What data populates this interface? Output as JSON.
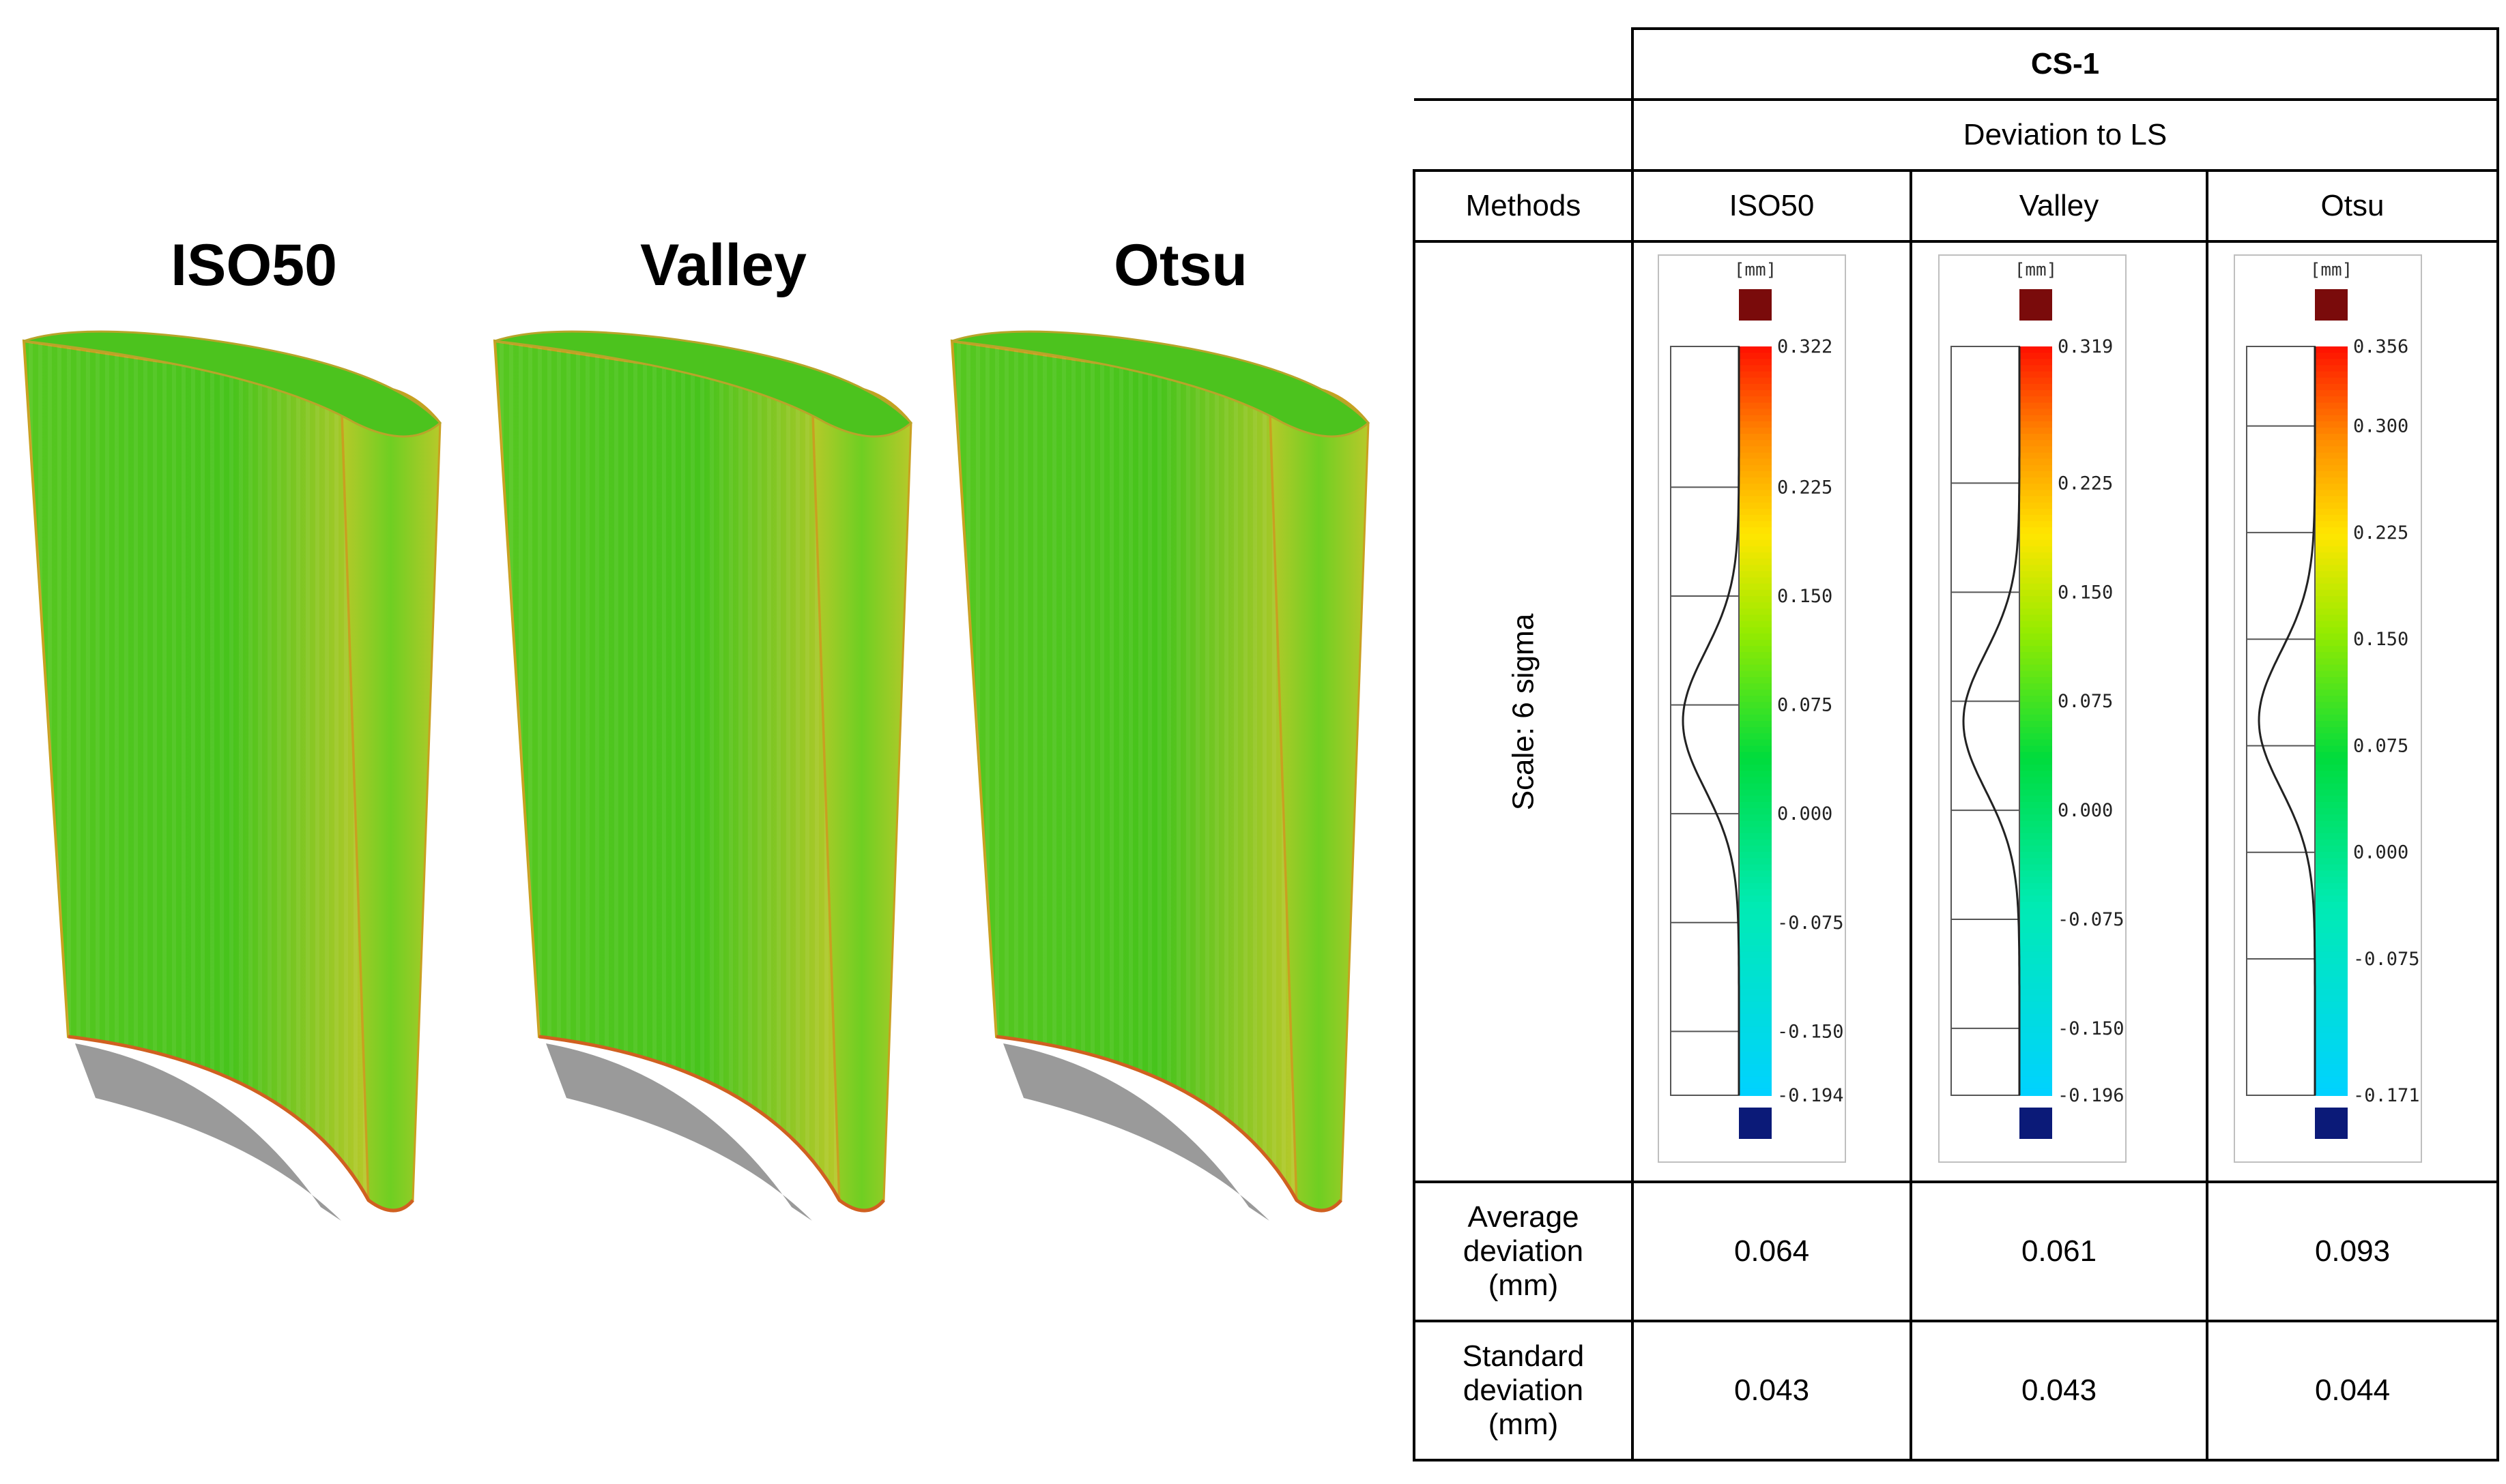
{
  "models": [
    {
      "label": "ISO50"
    },
    {
      "label": "Valley"
    },
    {
      "label": "Otsu"
    }
  ],
  "table": {
    "group_header": "CS-1",
    "sub_header": "Deviation to LS",
    "methods_label": "Methods",
    "methods": [
      "ISO50",
      "Valley",
      "Otsu"
    ],
    "scale_label": "Scale: 6 sigma",
    "avg_label": [
      "Average",
      "deviation",
      "(mm)"
    ],
    "std_label": [
      "Standard",
      "deviation",
      "(mm)"
    ],
    "average_deviation": [
      "0.064",
      "0.061",
      "0.093"
    ],
    "standard_deviation": [
      "0.043",
      "0.043",
      "0.044"
    ]
  },
  "legends": [
    {
      "unit": "[mm]",
      "max": 0.322,
      "min": -0.194,
      "mean": 0.064,
      "ticks": [
        "0.322",
        "0.225",
        "0.150",
        "0.075",
        "0.000",
        "-0.075",
        "-0.150",
        "-0.194"
      ]
    },
    {
      "unit": "[mm]",
      "max": 0.319,
      "min": -0.196,
      "mean": 0.061,
      "ticks": [
        "0.319",
        "0.225",
        "0.150",
        "0.075",
        "0.000",
        "-0.075",
        "-0.150",
        "-0.196"
      ]
    },
    {
      "unit": "[mm]",
      "max": 0.356,
      "min": -0.171,
      "mean": 0.093,
      "ticks": [
        "0.356",
        "0.300",
        "0.225",
        "0.150",
        "0.075",
        "0.000",
        "-0.075",
        "-0.171"
      ]
    }
  ],
  "colors": {
    "surface_green": "#47c41c",
    "surface_yellow": "#b7c92a",
    "over_limit": "#7a0b0b",
    "under_limit": "#0b1a78"
  }
}
